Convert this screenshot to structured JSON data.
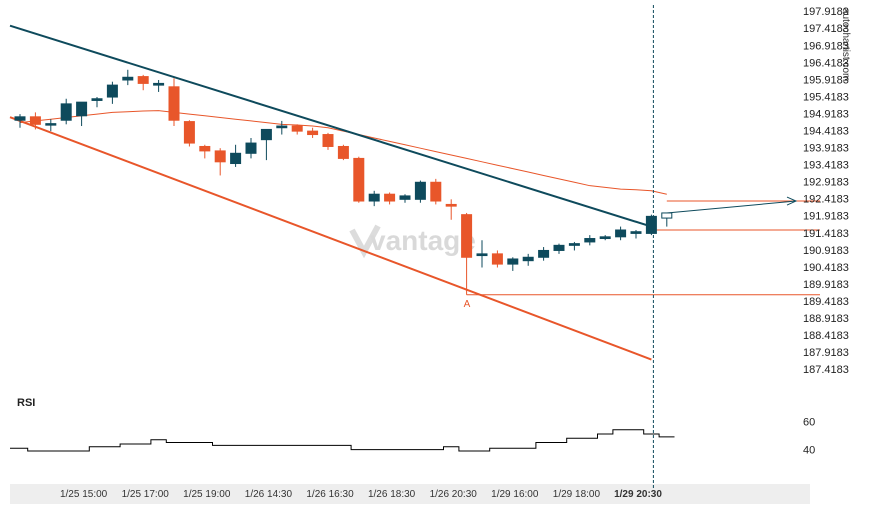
{
  "site_label": "autochartist.com",
  "watermark": "vantage",
  "rsi_label": "RSI",
  "pattern_point_label": "A",
  "colors": {
    "bull": "#0e4a5c",
    "bear": "#e8562a",
    "resistance": "#0e4a5c",
    "support": "#e8562a",
    "ma": "#e8562a",
    "vline": "#0e4a5c",
    "projection": "#0e4a5c"
  },
  "chart_data": {
    "type": "candlestick",
    "y_axis_ticks": [
      "197.9183",
      "197.4183",
      "196.9183",
      "196.4183",
      "195.9183",
      "195.4183",
      "194.9183",
      "194.4183",
      "193.9183",
      "193.4183",
      "192.9183",
      "192.4183",
      "191.9183",
      "191.4183",
      "190.9183",
      "190.4183",
      "189.9183",
      "189.4183",
      "188.9183",
      "188.4183",
      "187.9183",
      "187.4183"
    ],
    "ylim": [
      187.1,
      198.1
    ],
    "x_axis_ticks": [
      "1/25 15:00",
      "1/25 17:00",
      "1/25 19:00",
      "1/26 14:30",
      "1/26 16:30",
      "1/26 18:30",
      "1/26 20:30",
      "1/29 16:00",
      "1/29 18:00",
      "1/29 20:30"
    ],
    "x_tick_bar_index": [
      4,
      8,
      12,
      16,
      20,
      24,
      28,
      32,
      36,
      40
    ],
    "candles": [
      {
        "o": 194.72,
        "h": 194.9,
        "l": 194.5,
        "c": 194.82
      },
      {
        "o": 194.82,
        "h": 194.95,
        "l": 194.45,
        "c": 194.6
      },
      {
        "o": 194.6,
        "h": 194.75,
        "l": 194.4,
        "c": 194.62
      },
      {
        "o": 194.72,
        "h": 195.35,
        "l": 194.6,
        "c": 195.2
      },
      {
        "o": 194.85,
        "h": 195.25,
        "l": 194.55,
        "c": 195.25
      },
      {
        "o": 195.3,
        "h": 195.4,
        "l": 195.1,
        "c": 195.35
      },
      {
        "o": 195.4,
        "h": 195.85,
        "l": 195.2,
        "c": 195.75
      },
      {
        "o": 195.9,
        "h": 196.2,
        "l": 195.75,
        "c": 195.98
      },
      {
        "o": 196.0,
        "h": 196.05,
        "l": 195.6,
        "c": 195.8
      },
      {
        "o": 195.75,
        "h": 195.9,
        "l": 195.55,
        "c": 195.8
      },
      {
        "o": 195.7,
        "h": 195.95,
        "l": 194.55,
        "c": 194.72
      },
      {
        "o": 194.68,
        "h": 194.72,
        "l": 193.95,
        "c": 194.05
      },
      {
        "o": 193.95,
        "h": 194.0,
        "l": 193.6,
        "c": 193.82
      },
      {
        "o": 193.82,
        "h": 193.9,
        "l": 193.1,
        "c": 193.5
      },
      {
        "o": 193.45,
        "h": 194.0,
        "l": 193.35,
        "c": 193.75
      },
      {
        "o": 193.75,
        "h": 194.2,
        "l": 193.6,
        "c": 194.05
      },
      {
        "o": 194.15,
        "h": 194.4,
        "l": 193.55,
        "c": 194.45
      },
      {
        "o": 194.5,
        "h": 194.7,
        "l": 194.3,
        "c": 194.55
      },
      {
        "o": 194.55,
        "h": 194.6,
        "l": 194.3,
        "c": 194.4
      },
      {
        "o": 194.4,
        "h": 194.5,
        "l": 194.2,
        "c": 194.3
      },
      {
        "o": 194.3,
        "h": 194.35,
        "l": 193.85,
        "c": 193.95
      },
      {
        "o": 193.95,
        "h": 194.0,
        "l": 193.55,
        "c": 193.6
      },
      {
        "o": 193.6,
        "h": 193.65,
        "l": 192.3,
        "c": 192.35
      },
      {
        "o": 192.35,
        "h": 192.65,
        "l": 192.2,
        "c": 192.55
      },
      {
        "o": 192.55,
        "h": 192.6,
        "l": 192.25,
        "c": 192.35
      },
      {
        "o": 192.4,
        "h": 192.55,
        "l": 192.3,
        "c": 192.5
      },
      {
        "o": 192.4,
        "h": 192.95,
        "l": 192.3,
        "c": 192.9
      },
      {
        "o": 192.9,
        "h": 193.0,
        "l": 192.25,
        "c": 192.35
      },
      {
        "o": 192.25,
        "h": 192.4,
        "l": 191.8,
        "c": 192.2
      },
      {
        "o": 191.95,
        "h": 192.0,
        "l": 189.6,
        "c": 190.7
      },
      {
        "o": 190.75,
        "h": 191.2,
        "l": 190.4,
        "c": 190.8
      },
      {
        "o": 190.8,
        "h": 190.9,
        "l": 190.4,
        "c": 190.5
      },
      {
        "o": 190.5,
        "h": 190.7,
        "l": 190.3,
        "c": 190.65
      },
      {
        "o": 190.6,
        "h": 190.8,
        "l": 190.45,
        "c": 190.7
      },
      {
        "o": 190.7,
        "h": 191.0,
        "l": 190.6,
        "c": 190.9
      },
      {
        "o": 190.9,
        "h": 191.1,
        "l": 190.8,
        "c": 191.05
      },
      {
        "o": 191.05,
        "h": 191.15,
        "l": 190.9,
        "c": 191.1
      },
      {
        "o": 191.15,
        "h": 191.35,
        "l": 191.05,
        "c": 191.25
      },
      {
        "o": 191.25,
        "h": 191.35,
        "l": 191.2,
        "c": 191.3
      },
      {
        "o": 191.3,
        "h": 191.6,
        "l": 191.2,
        "c": 191.5
      },
      {
        "o": 191.4,
        "h": 191.5,
        "l": 191.25,
        "c": 191.45
      },
      {
        "o": 191.4,
        "h": 191.95,
        "l": 191.35,
        "c": 191.9
      },
      {
        "o": 191.85,
        "h": 192.0,
        "l": 191.6,
        "c": 192.0
      }
    ],
    "ma": [
      194.65,
      194.7,
      194.75,
      194.8,
      194.85,
      194.9,
      194.95,
      194.97,
      194.99,
      195.0,
      194.95,
      194.9,
      194.85,
      194.8,
      194.75,
      194.7,
      194.65,
      194.6,
      194.58,
      194.55,
      194.5,
      194.4,
      194.3,
      194.2,
      194.1,
      194.0,
      193.9,
      193.8,
      193.7,
      193.6,
      193.5,
      193.4,
      193.3,
      193.2,
      193.1,
      193.0,
      192.9,
      192.8,
      192.75,
      192.7,
      192.68,
      192.65,
      192.55
    ],
    "resistance_line": {
      "from_bar": 0,
      "from_value": 197.4,
      "to_bar": 41,
      "to_value": 191.6
    },
    "support_line": {
      "from_bar": 0,
      "from_value": 194.7,
      "to_bar": 41,
      "to_value": 187.7
    },
    "horizontal_levels": [
      {
        "name": "projection",
        "value": 192.35,
        "from_bar": 42
      },
      {
        "name": "breakout",
        "value": 191.5,
        "from_bar": 41
      },
      {
        "name": "point-A",
        "value": 189.6,
        "from_bar": 29
      }
    ],
    "projection_arrow": {
      "from_bar": 42,
      "from_value": 192.0,
      "to_value": 192.35
    },
    "vertical_marker_bar": 41,
    "point_a_bar": 29,
    "rsi": {
      "ticks": [
        60,
        40
      ],
      "ylim": [
        20,
        75
      ],
      "values": [
        41,
        39,
        39,
        39,
        39,
        42,
        42,
        44,
        44,
        47,
        45,
        45,
        45,
        43,
        43,
        43,
        43,
        43,
        43,
        43,
        43,
        43,
        40,
        40,
        40,
        40,
        40,
        40,
        42,
        39,
        39,
        41,
        41,
        41,
        45,
        45,
        48,
        48,
        51,
        54,
        54,
        51,
        49
      ]
    }
  }
}
